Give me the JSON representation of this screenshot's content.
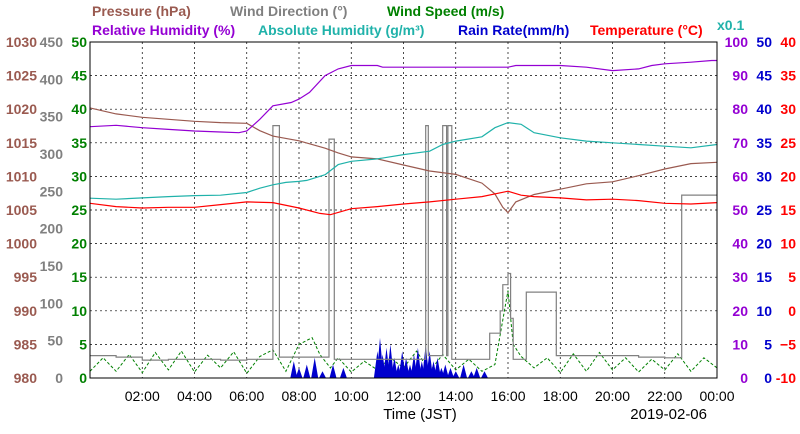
{
  "chart_data": {
    "type": "line",
    "title_lines": [
      [
        {
          "text": "Pressure (hPa)",
          "color": "#9a5a50"
        },
        {
          "text": "Wind Direction (°)",
          "color": "#808080"
        },
        {
          "text": "Wind Speed (m/s)",
          "color": "#008000"
        }
      ],
      [
        {
          "text": "Relative Humidity (%)",
          "color": "#9400d3"
        },
        {
          "text": "Absolute Humidity (g/m³)",
          "color": "#20b2aa"
        },
        {
          "text": "Rain Rate(mm/h)",
          "color": "#0000cd"
        },
        {
          "text": "Temperature (°C)",
          "color": "#ff0000"
        },
        {
          "text": "x0.1",
          "color": "#20b2aa"
        }
      ]
    ],
    "xlabel": "Time (JST)",
    "date_label": "2019-02-06",
    "x_range_hours": [
      0,
      24
    ],
    "x_ticks": [
      "02:00",
      "04:00",
      "06:00",
      "08:00",
      "10:00",
      "12:00",
      "14:00",
      "16:00",
      "18:00",
      "20:00",
      "22:00",
      "00:00"
    ],
    "grid": true,
    "left_axes": [
      {
        "name": "pressure",
        "color": "#9a5a50",
        "range": [
          980,
          1030
        ],
        "ticks": [
          "980",
          "985",
          "990",
          "995",
          "1000",
          "1005",
          "1010",
          "1015",
          "1020",
          "1025",
          "1030"
        ]
      },
      {
        "name": "wind_direction",
        "color": "#808080",
        "range": [
          0,
          450
        ],
        "ticks": [
          "0",
          "50",
          "100",
          "150",
          "200",
          "250",
          "300",
          "350",
          "400",
          "450"
        ]
      },
      {
        "name": "wind_speed",
        "color": "#008000",
        "range": [
          0,
          50
        ],
        "ticks": [
          "0",
          "5",
          "10",
          "15",
          "20",
          "25",
          "30",
          "35",
          "40",
          "45",
          "50"
        ]
      }
    ],
    "right_axes": [
      {
        "name": "humidity",
        "color": "#9400d3",
        "range": [
          0,
          100
        ],
        "ticks": [
          "0",
          "10",
          "20",
          "30",
          "40",
          "50",
          "60",
          "70",
          "80",
          "90",
          "100"
        ]
      },
      {
        "name": "rain_rate",
        "color": "#0000cd",
        "range": [
          0,
          50
        ],
        "ticks": [
          "0",
          "5",
          "10",
          "15",
          "20",
          "25",
          "30",
          "35",
          "40",
          "45",
          "50"
        ]
      },
      {
        "name": "temperature",
        "color": "#ff0000",
        "range": [
          -10,
          40
        ],
        "ticks": [
          "-10",
          "−5",
          "0",
          "5",
          "10",
          "15",
          "20",
          "25",
          "30",
          "35",
          "40"
        ]
      }
    ],
    "series": [
      {
        "name": "Pressure (hPa)",
        "axis": "pressure",
        "color": "#9a5a50",
        "style": "line",
        "points": [
          [
            0,
            1020.2
          ],
          [
            1,
            1019.3
          ],
          [
            2,
            1018.8
          ],
          [
            3,
            1018.5
          ],
          [
            4,
            1018.2
          ],
          [
            5,
            1018.0
          ],
          [
            6,
            1017.9
          ],
          [
            6.5,
            1016.8
          ],
          [
            7,
            1016.0
          ],
          [
            8,
            1015.3
          ],
          [
            9,
            1014.2
          ],
          [
            9.5,
            1013.5
          ],
          [
            10,
            1012.9
          ],
          [
            11,
            1012.6
          ],
          [
            12,
            1011.7
          ],
          [
            13,
            1010.8
          ],
          [
            14,
            1010.3
          ],
          [
            15,
            1009.0
          ],
          [
            15.5,
            1007.4
          ],
          [
            15.8,
            1005.4
          ],
          [
            16,
            1004.6
          ],
          [
            16.3,
            1006.2
          ],
          [
            17,
            1007.3
          ],
          [
            18,
            1008.1
          ],
          [
            19,
            1008.9
          ],
          [
            20,
            1009.2
          ],
          [
            21,
            1010.1
          ],
          [
            22,
            1011.1
          ],
          [
            23,
            1011.9
          ],
          [
            24,
            1012.1
          ]
        ]
      },
      {
        "name": "Relative Humidity (%)",
        "axis": "humidity",
        "color": "#9400d3",
        "style": "line",
        "points": [
          [
            0,
            74.8
          ],
          [
            1,
            75.2
          ],
          [
            2,
            74.5
          ],
          [
            3,
            74
          ],
          [
            4,
            73.5
          ],
          [
            5,
            73.2
          ],
          [
            5.7,
            73
          ],
          [
            6,
            73.5
          ],
          [
            6.5,
            77
          ],
          [
            7,
            81
          ],
          [
            7.7,
            82
          ],
          [
            8,
            83
          ],
          [
            8.4,
            85
          ],
          [
            9,
            90
          ],
          [
            9.5,
            92
          ],
          [
            10,
            93
          ],
          [
            11,
            93
          ],
          [
            11.2,
            92.5
          ],
          [
            14,
            92.5
          ],
          [
            15,
            92.5
          ],
          [
            16,
            92.5
          ],
          [
            16.3,
            93
          ],
          [
            18,
            93
          ],
          [
            19,
            92.5
          ],
          [
            20,
            91.5
          ],
          [
            21,
            92
          ],
          [
            21.5,
            93
          ],
          [
            22,
            93.5
          ],
          [
            23,
            94
          ],
          [
            23.8,
            94.5
          ],
          [
            24,
            94.5
          ]
        ]
      },
      {
        "name": "Absolute Humidity (g/m³)",
        "axis": "humidity",
        "color": "#20b2aa",
        "style": "line",
        "points": [
          [
            0,
            53.5
          ],
          [
            1,
            53.2
          ],
          [
            2,
            53.6
          ],
          [
            3,
            54.0
          ],
          [
            4,
            54.3
          ],
          [
            5,
            54.4
          ],
          [
            6,
            55.2
          ],
          [
            6.5,
            56.5
          ],
          [
            7,
            57.5
          ],
          [
            7.5,
            58.2
          ],
          [
            8,
            58.5
          ],
          [
            8.3,
            58.8
          ],
          [
            9,
            60.5
          ],
          [
            9.5,
            63.5
          ],
          [
            10,
            64.5
          ],
          [
            11,
            65.2
          ],
          [
            12,
            66.5
          ],
          [
            13,
            67.5
          ],
          [
            13.5,
            69.5
          ],
          [
            14,
            70.5
          ],
          [
            15,
            71.8
          ],
          [
            15.5,
            74.5
          ],
          [
            16,
            76
          ],
          [
            16.5,
            75.5
          ],
          [
            17,
            73
          ],
          [
            18,
            71.5
          ],
          [
            19,
            70.5
          ],
          [
            20,
            70
          ],
          [
            21,
            69.5
          ],
          [
            22,
            69
          ],
          [
            23,
            68.5
          ],
          [
            24,
            69.5
          ]
        ]
      },
      {
        "name": "Temperature (°C)",
        "axis": "temperature",
        "color": "#ff0000",
        "style": "line",
        "points": [
          [
            0,
            16.0
          ],
          [
            1,
            15.5
          ],
          [
            2,
            15.3
          ],
          [
            3,
            15.4
          ],
          [
            4,
            15.4
          ],
          [
            5,
            15.8
          ],
          [
            6,
            16.2
          ],
          [
            7,
            16.1
          ],
          [
            8,
            15.3
          ],
          [
            8.8,
            14.5
          ],
          [
            9.2,
            14.3
          ],
          [
            10,
            15.2
          ],
          [
            11,
            15.5
          ],
          [
            12,
            15.9
          ],
          [
            13,
            16.2
          ],
          [
            14,
            16.6
          ],
          [
            15,
            17.0
          ],
          [
            16,
            17.8
          ],
          [
            16.5,
            17.2
          ],
          [
            17,
            17.0
          ],
          [
            18,
            16.8
          ],
          [
            19,
            16.5
          ],
          [
            20,
            16.6
          ],
          [
            21,
            16.4
          ],
          [
            22,
            16.0
          ],
          [
            23,
            15.9
          ],
          [
            24,
            16.1
          ]
        ]
      },
      {
        "name": "Wind Direction (°)",
        "axis": "wind_direction",
        "color": "#808080",
        "style": "step",
        "points": [
          [
            0,
            30
          ],
          [
            1,
            28
          ],
          [
            2,
            24
          ],
          [
            3,
            25
          ],
          [
            4,
            25
          ],
          [
            5,
            24
          ],
          [
            6,
            25
          ],
          [
            6.95,
            25
          ],
          [
            7,
            338
          ],
          [
            7.2,
            338
          ],
          [
            7.25,
            28
          ],
          [
            9.1,
            28
          ],
          [
            9.15,
            320
          ],
          [
            9.3,
            320
          ],
          [
            9.35,
            25
          ],
          [
            12.8,
            25
          ],
          [
            12.85,
            338
          ],
          [
            12.95,
            30
          ],
          [
            13.45,
            30
          ],
          [
            13.5,
            338
          ],
          [
            13.65,
            30
          ],
          [
            13.7,
            338
          ],
          [
            13.85,
            25
          ],
          [
            14.6,
            25
          ],
          [
            15.3,
            60
          ],
          [
            15.7,
            90
          ],
          [
            15.8,
            125
          ],
          [
            16,
            140
          ],
          [
            16.1,
            80
          ],
          [
            16.2,
            25
          ],
          [
            16.6,
            25
          ],
          [
            16.7,
            115
          ],
          [
            17.8,
            115
          ],
          [
            17.85,
            30
          ],
          [
            21,
            28
          ],
          [
            22,
            27
          ],
          [
            22.6,
            27
          ],
          [
            22.65,
            245
          ],
          [
            24,
            245
          ]
        ]
      },
      {
        "name": "Wind Speed (m/s)",
        "axis": "wind_speed",
        "color": "#008000",
        "style": "dashed",
        "points": [
          [
            0,
            1
          ],
          [
            0.5,
            3
          ],
          [
            1,
            1
          ],
          [
            1.5,
            3.5
          ],
          [
            2,
            0.8
          ],
          [
            2.5,
            3.8
          ],
          [
            3,
            1.2
          ],
          [
            3.5,
            4.0
          ],
          [
            4,
            0.9
          ],
          [
            4.5,
            3.4
          ],
          [
            5,
            1.5
          ],
          [
            5.5,
            3.9
          ],
          [
            6,
            0.7
          ],
          [
            6.5,
            3.2
          ],
          [
            7,
            4.2
          ],
          [
            7.5,
            1.0
          ],
          [
            8,
            5.0
          ],
          [
            8.5,
            6.0
          ],
          [
            8.8,
            3.5
          ],
          [
            9.2,
            1.5
          ],
          [
            9.5,
            3.0
          ],
          [
            10,
            0.9
          ],
          [
            10.5,
            2.5
          ],
          [
            11,
            1.2
          ],
          [
            11.5,
            3.0
          ],
          [
            12,
            1.5
          ],
          [
            12.5,
            4.0
          ],
          [
            13,
            1.0
          ],
          [
            13.5,
            3.5
          ],
          [
            14,
            1.2
          ],
          [
            14.5,
            2.8
          ],
          [
            15,
            1.0
          ],
          [
            15.5,
            2.0
          ],
          [
            16,
            13
          ],
          [
            16.2,
            5
          ],
          [
            16.5,
            3.2
          ],
          [
            17,
            1.5
          ],
          [
            17.5,
            3.0
          ],
          [
            18,
            0.8
          ],
          [
            18.5,
            3.6
          ],
          [
            19,
            1.0
          ],
          [
            19.5,
            3.8
          ],
          [
            20,
            1.2
          ],
          [
            20.5,
            3.0
          ],
          [
            21,
            0.9
          ],
          [
            21.5,
            2.8
          ],
          [
            22,
            1.2
          ],
          [
            22.5,
            3.6
          ],
          [
            23,
            1.0
          ],
          [
            23.5,
            3.0
          ],
          [
            24,
            1.5
          ]
        ]
      },
      {
        "name": "Rain Rate(mm/h)",
        "axis": "rain_rate",
        "color": "#0000cd",
        "style": "bars",
        "points": [
          [
            7.8,
            2.5
          ],
          [
            8.0,
            1.5
          ],
          [
            8.3,
            2.0
          ],
          [
            8.6,
            3.0
          ],
          [
            8.9,
            1.0
          ],
          [
            9.3,
            2.0
          ],
          [
            9.7,
            1.5
          ],
          [
            11.0,
            4.0
          ],
          [
            11.1,
            6.0
          ],
          [
            11.2,
            3.5
          ],
          [
            11.35,
            4.5
          ],
          [
            11.5,
            5.0
          ],
          [
            11.65,
            3.0
          ],
          [
            11.8,
            2.0
          ],
          [
            11.95,
            4.0
          ],
          [
            12.1,
            3.0
          ],
          [
            12.25,
            2.0
          ],
          [
            12.4,
            3.5
          ],
          [
            12.55,
            4.5
          ],
          [
            12.7,
            2.5
          ],
          [
            12.85,
            5.0
          ],
          [
            13.0,
            4.0
          ],
          [
            13.15,
            2.5
          ],
          [
            13.3,
            3.0
          ],
          [
            13.45,
            1.5
          ],
          [
            13.6,
            2.0
          ],
          [
            13.8,
            1.5
          ],
          [
            14.0,
            1.0
          ],
          [
            14.3,
            2.0
          ],
          [
            14.6,
            1.0
          ],
          [
            14.8,
            1.5
          ],
          [
            15.1,
            1.0
          ]
        ]
      }
    ]
  }
}
